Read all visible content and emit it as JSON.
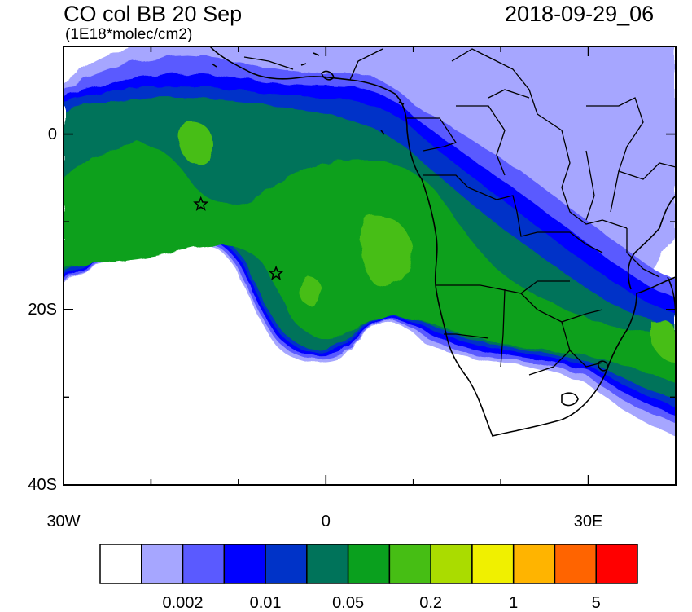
{
  "header": {
    "title": "CO col BB 20 Sep",
    "units": "(1E18*molec/cm2)",
    "datetime": "2018-09-29_06"
  },
  "axes": {
    "y_ticks": [
      {
        "label": "0",
        "lat": 0
      },
      {
        "label": "20S",
        "lat": -20
      },
      {
        "label": "40S",
        "lat": -40
      }
    ],
    "x_ticks": [
      {
        "label": "30W",
        "lon": -30
      },
      {
        "label": "0",
        "lon": 0
      },
      {
        "label": "30E",
        "lon": 30
      }
    ],
    "extent": {
      "lon_min": -30,
      "lon_max": 40,
      "lat_min": -40,
      "lat_max": 10
    }
  },
  "markers": [
    {
      "name": "star-marker-1",
      "lon": -14.3,
      "lat": -8.0
    },
    {
      "name": "star-marker-2",
      "lon": -5.7,
      "lat": -15.9
    }
  ],
  "colorbar": {
    "colors": [
      "#ffffff",
      "#a6a6ff",
      "#5a5aff",
      "#0000ff",
      "#0033c8",
      "#00735a",
      "#0aa01e",
      "#46be14",
      "#aadc00",
      "#f0f000",
      "#ffb400",
      "#ff6400",
      "#ff0000"
    ],
    "labels": [
      {
        "text": "0.002",
        "boundary": 2
      },
      {
        "text": "0.01",
        "boundary": 4
      },
      {
        "text": "0.05",
        "boundary": 6
      },
      {
        "text": "0.2",
        "boundary": 8
      },
      {
        "text": "1",
        "boundary": 10
      },
      {
        "text": "5",
        "boundary": 12
      }
    ]
  }
}
